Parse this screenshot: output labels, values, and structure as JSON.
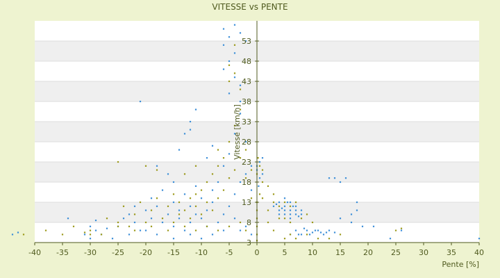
{
  "chart_data": {
    "type": "scatter",
    "title": "VITESSE vs PENTE",
    "xlabel": "Pente [%]",
    "ylabel": "Vitesse [km/h]",
    "xlim": [
      -40,
      40
    ],
    "ylim": [
      3,
      58
    ],
    "x_ticks": [
      -40,
      -35,
      -30,
      -25,
      -20,
      -15,
      -10,
      -5,
      0,
      5,
      10,
      15,
      20,
      25,
      30,
      35,
      40
    ],
    "y_ticks": [
      3,
      8,
      13,
      18,
      23,
      28,
      33,
      38,
      43,
      48,
      53
    ],
    "grid": true,
    "legend": "none",
    "colors": {
      "series_a": "#3d8fd8",
      "series_b": "#9c9a1c",
      "axis": "#4f5a1e",
      "band": "#efefef",
      "plot_bg": "#ffffff",
      "page_bg": "#eef3d0"
    },
    "series": [
      {
        "color": "#3d8fd8",
        "points": [
          [
            -44,
            5
          ],
          [
            -43,
            5.5
          ],
          [
            -34,
            9
          ],
          [
            -30,
            7
          ],
          [
            -29,
            8.5
          ],
          [
            -27,
            6.5
          ],
          [
            -28,
            5
          ],
          [
            -30,
            4
          ],
          [
            -31,
            5
          ],
          [
            -25,
            7
          ],
          [
            -24,
            9
          ],
          [
            -23,
            10
          ],
          [
            -22,
            8
          ],
          [
            -21,
            6
          ],
          [
            -20,
            11
          ],
          [
            -19,
            9
          ],
          [
            -18,
            12
          ],
          [
            -17,
            8
          ],
          [
            -16,
            10
          ],
          [
            -15,
            13
          ],
          [
            -15,
            7
          ],
          [
            -14,
            9
          ],
          [
            -14,
            11
          ],
          [
            -13,
            15
          ],
          [
            -13,
            6
          ],
          [
            -12,
            8
          ],
          [
            -12,
            12
          ],
          [
            -11,
            10
          ],
          [
            -11,
            17
          ],
          [
            -10,
            9
          ],
          [
            -10,
            14
          ],
          [
            -9,
            11
          ],
          [
            -9,
            7
          ],
          [
            -8,
            13
          ],
          [
            -8,
            16
          ],
          [
            -7,
            8
          ],
          [
            -7,
            18
          ],
          [
            -6,
            10
          ],
          [
            -6,
            22
          ],
          [
            -5,
            12
          ],
          [
            -5,
            25
          ],
          [
            -4,
            15
          ],
          [
            -4,
            30
          ],
          [
            -3,
            18
          ],
          [
            -3,
            35
          ],
          [
            -2,
            20
          ],
          [
            -2,
            28
          ],
          [
            -1,
            22
          ],
          [
            -1,
            16
          ],
          [
            -21,
            38
          ],
          [
            -11,
            36
          ],
          [
            -12,
            33
          ],
          [
            -12,
            31
          ],
          [
            -13,
            30
          ],
          [
            -8,
            27
          ],
          [
            -9,
            24
          ],
          [
            -14,
            26
          ],
          [
            -16,
            20
          ],
          [
            -18,
            22
          ],
          [
            -15,
            18
          ],
          [
            -17,
            16
          ],
          [
            -19,
            14
          ],
          [
            -22,
            12
          ],
          [
            -6,
            56
          ],
          [
            -5,
            54
          ],
          [
            -6,
            52
          ],
          [
            -4,
            50
          ],
          [
            -5,
            48
          ],
          [
            -6,
            46
          ],
          [
            -4,
            44
          ],
          [
            -3,
            42
          ],
          [
            -5,
            40
          ],
          [
            -3,
            38
          ],
          [
            -4,
            57
          ],
          [
            -3,
            55
          ],
          [
            -2,
            53
          ],
          [
            0,
            22
          ],
          [
            0,
            21
          ],
          [
            0.5,
            23
          ],
          [
            1,
            20
          ],
          [
            0.5,
            19
          ],
          [
            1,
            24
          ],
          [
            0.3,
            17
          ],
          [
            3,
            12
          ],
          [
            4,
            11
          ],
          [
            4,
            13
          ],
          [
            5,
            10
          ],
          [
            5,
            12
          ],
          [
            5,
            14
          ],
          [
            6,
            11
          ],
          [
            6,
            9
          ],
          [
            6,
            13
          ],
          [
            7,
            10
          ],
          [
            7,
            12
          ],
          [
            7,
            11
          ],
          [
            8,
            10
          ],
          [
            8,
            11
          ],
          [
            4,
            10
          ],
          [
            5,
            11
          ],
          [
            6,
            10
          ],
          [
            3.5,
            12.5
          ],
          [
            6.5,
            12
          ],
          [
            7.5,
            9.5
          ],
          [
            5.5,
            13
          ],
          [
            4.5,
            11.5
          ],
          [
            6,
            5
          ],
          [
            7,
            6
          ],
          [
            8,
            5
          ],
          [
            9,
            6
          ],
          [
            10,
            5.5
          ],
          [
            11,
            6
          ],
          [
            12,
            5
          ],
          [
            13,
            6
          ],
          [
            14,
            5.5
          ],
          [
            7.5,
            5
          ],
          [
            9.5,
            5
          ],
          [
            11.5,
            5.5
          ],
          [
            8.5,
            6.5
          ],
          [
            10.5,
            6
          ],
          [
            12.5,
            5.5
          ],
          [
            13,
            19
          ],
          [
            14,
            19
          ],
          [
            15,
            18
          ],
          [
            16,
            19
          ],
          [
            18,
            13
          ],
          [
            18,
            11
          ],
          [
            17,
            10
          ],
          [
            17,
            8
          ],
          [
            15,
            9
          ],
          [
            19,
            7
          ],
          [
            21,
            7
          ],
          [
            24,
            4
          ],
          [
            26,
            6
          ],
          [
            40,
            4
          ],
          [
            -2,
            7
          ],
          [
            -1,
            5
          ],
          [
            -3,
            6
          ],
          [
            -4,
            9
          ],
          [
            -6,
            6
          ],
          [
            -8,
            5
          ],
          [
            -10,
            4
          ],
          [
            -12,
            5
          ],
          [
            -15,
            4
          ],
          [
            -18,
            5
          ],
          [
            -20,
            6
          ],
          [
            -23,
            5
          ],
          [
            -26,
            4
          ],
          [
            -29,
            6
          ]
        ]
      },
      {
        "color": "#9c9a1c",
        "points": [
          [
            -42,
            5
          ],
          [
            -38,
            6
          ],
          [
            -33,
            7
          ],
          [
            -30,
            6
          ],
          [
            -27,
            9
          ],
          [
            -25,
            8
          ],
          [
            -24,
            12
          ],
          [
            -23,
            7
          ],
          [
            -22,
            10
          ],
          [
            -21,
            13
          ],
          [
            -20,
            8
          ],
          [
            -19,
            11
          ],
          [
            -18,
            14
          ],
          [
            -17,
            9
          ],
          [
            -16,
            12
          ],
          [
            -15,
            15
          ],
          [
            -15,
            8
          ],
          [
            -14,
            10
          ],
          [
            -14,
            13
          ],
          [
            -13,
            11
          ],
          [
            -12,
            14
          ],
          [
            -12,
            9
          ],
          [
            -11,
            12
          ],
          [
            -11,
            15
          ],
          [
            -10,
            10
          ],
          [
            -10,
            16
          ],
          [
            -9,
            13
          ],
          [
            -9,
            18
          ],
          [
            -8,
            11
          ],
          [
            -8,
            20
          ],
          [
            -7,
            14
          ],
          [
            -7,
            22
          ],
          [
            -6,
            16
          ],
          [
            -6,
            24
          ],
          [
            -5,
            19
          ],
          [
            -5,
            28
          ],
          [
            -4,
            21
          ],
          [
            -4,
            32
          ],
          [
            -3,
            24
          ],
          [
            -3,
            36
          ],
          [
            -2,
            19
          ],
          [
            -2,
            26
          ],
          [
            -1,
            21
          ],
          [
            -1,
            14
          ],
          [
            -25,
            23
          ],
          [
            -20,
            22
          ],
          [
            -18,
            21
          ],
          [
            -13,
            20
          ],
          [
            -11,
            22
          ],
          [
            -7,
            26
          ],
          [
            -5,
            47
          ],
          [
            -4,
            45
          ],
          [
            -5,
            43
          ],
          [
            -3,
            41
          ],
          [
            -4,
            52
          ],
          [
            0,
            20
          ],
          [
            0.5,
            22
          ],
          [
            1,
            21
          ],
          [
            1,
            18
          ],
          [
            0.2,
            24
          ],
          [
            0.5,
            15
          ],
          [
            0,
            13
          ],
          [
            0,
            11
          ],
          [
            0,
            9
          ],
          [
            0,
            7
          ],
          [
            0,
            5
          ],
          [
            0,
            3.5
          ],
          [
            2,
            17
          ],
          [
            3,
            15
          ],
          [
            3,
            13
          ],
          [
            4,
            12
          ],
          [
            5,
            13
          ],
          [
            6,
            12
          ],
          [
            7,
            13
          ],
          [
            4,
            9
          ],
          [
            5,
            9
          ],
          [
            6,
            8
          ],
          [
            8,
            9
          ],
          [
            9,
            10
          ],
          [
            10,
            8
          ],
          [
            5,
            4
          ],
          [
            6,
            5
          ],
          [
            7,
            4
          ],
          [
            9,
            5
          ],
          [
            11,
            4
          ],
          [
            13,
            4
          ],
          [
            15,
            5
          ],
          [
            3,
            6
          ],
          [
            2,
            8
          ],
          [
            2,
            11
          ],
          [
            1,
            14
          ],
          [
            -2,
            6
          ],
          [
            -3,
            8
          ],
          [
            -5,
            7
          ],
          [
            -7,
            6
          ],
          [
            -9,
            7
          ],
          [
            -11,
            6
          ],
          [
            -13,
            7
          ],
          [
            -16,
            6
          ],
          [
            -19,
            7
          ],
          [
            -22,
            6
          ],
          [
            -25,
            7
          ],
          [
            -28,
            5
          ],
          [
            -30,
            5
          ],
          [
            25,
            6
          ],
          [
            26,
            6.5
          ],
          [
            -35,
            5
          ],
          [
            -31,
            5.5
          ]
        ]
      }
    ]
  }
}
